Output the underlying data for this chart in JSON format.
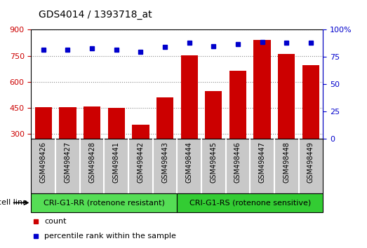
{
  "title": "GDS4014 / 1393718_at",
  "samples": [
    "GSM498426",
    "GSM498427",
    "GSM498428",
    "GSM498441",
    "GSM498442",
    "GSM498443",
    "GSM498444",
    "GSM498445",
    "GSM498446",
    "GSM498447",
    "GSM498448",
    "GSM498449"
  ],
  "counts": [
    452,
    452,
    457,
    450,
    352,
    510,
    752,
    548,
    665,
    840,
    760,
    695
  ],
  "percentile_ranks": [
    82,
    82,
    83,
    82,
    80,
    84,
    88,
    85,
    87,
    89,
    88,
    88
  ],
  "ylim_left": [
    270,
    900
  ],
  "ylim_right": [
    0,
    100
  ],
  "yticks_left": [
    300,
    450,
    600,
    750,
    900
  ],
  "yticks_right": [
    0,
    25,
    50,
    75,
    100
  ],
  "groups": [
    {
      "label": "CRI-G1-RR (rotenone resistant)",
      "color": "#66DD66",
      "start": 0,
      "end": 6
    },
    {
      "label": "CRI-G1-RS (rotenone sensitive)",
      "color": "#44CC44",
      "start": 6,
      "end": 12
    }
  ],
  "group_label_prefix": "cell line",
  "bar_color": "#cc0000",
  "dot_color": "#0000cc",
  "bar_width": 0.7,
  "grid_color": "#888888",
  "tick_area_color": "#c8c8c8",
  "legend_items": [
    {
      "label": "count",
      "color": "#cc0000"
    },
    {
      "label": "percentile rank within the sample",
      "color": "#0000cc"
    }
  ]
}
